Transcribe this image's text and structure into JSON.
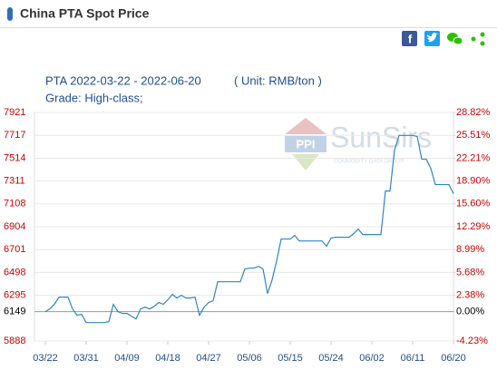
{
  "header": {
    "title": "China PTA Spot Price"
  },
  "chart_data": {
    "type": "line",
    "title": "PTA 2022-03-22 - 2022-06-20",
    "unit": "( Unit: RMB/ton )",
    "subtitle": "Grade: High-class;",
    "watermark": {
      "logo": "PPI",
      "brand": "SunSirs",
      "tagline": "COMMODITY DATA GROUP"
    },
    "categories": [
      "03/22",
      null,
      null,
      null,
      null,
      null,
      null,
      null,
      null,
      "03/31",
      null,
      null,
      null,
      null,
      null,
      null,
      null,
      null,
      "04/09",
      null,
      null,
      null,
      null,
      null,
      null,
      null,
      null,
      "04/18",
      null,
      null,
      null,
      null,
      null,
      null,
      null,
      null,
      "04/27",
      null,
      null,
      null,
      null,
      null,
      null,
      null,
      null,
      "05/06",
      null,
      null,
      null,
      null,
      null,
      null,
      null,
      null,
      "05/15",
      null,
      null,
      null,
      null,
      null,
      null,
      null,
      null,
      "05/24",
      null,
      null,
      null,
      null,
      null,
      null,
      null,
      null,
      "06/02",
      null,
      null,
      null,
      null,
      null,
      null,
      null,
      null,
      "06/11",
      null,
      null,
      null,
      null,
      null,
      null,
      null,
      null,
      "06/20"
    ],
    "values": [
      6149,
      6173,
      6214,
      6278,
      6278,
      6278,
      6173,
      6117,
      6125,
      6052,
      6052,
      6052,
      6052,
      6052,
      6060,
      6214,
      6149,
      6133,
      6133,
      6109,
      6084,
      6173,
      6189,
      6173,
      6197,
      6230,
      6214,
      6254,
      6302,
      6270,
      6294,
      6270,
      6270,
      6278,
      6117,
      6189,
      6230,
      6246,
      6415,
      6415,
      6415,
      6415,
      6415,
      6415,
      6528,
      6536,
      6536,
      6552,
      6528,
      6310,
      6431,
      6601,
      6795,
      6795,
      6795,
      6827,
      6778,
      6778,
      6778,
      6778,
      6778,
      6778,
      6730,
      6803,
      6811,
      6811,
      6811,
      6811,
      6843,
      6883,
      6835,
      6835,
      6835,
      6835,
      6835,
      7222,
      7222,
      7585,
      7717,
      7717,
      7717,
      7717,
      7707,
      7505,
      7505,
      7424,
      7279,
      7279,
      7279,
      7279,
      7198
    ],
    "color": "#2e86c1",
    "ylim": [
      5888,
      7921
    ],
    "yticks": [
      5888,
      6149,
      6295,
      6498,
      6701,
      6904,
      7108,
      7311,
      7514,
      7717,
      7921
    ],
    "y2lim": [
      -4.23,
      28.82
    ],
    "y2ticks": [
      {
        "value": -4.23,
        "label": "-4.23%"
      },
      {
        "value": 0,
        "label": "0.00%"
      },
      {
        "value": 2.38,
        "label": "2.38%"
      },
      {
        "value": 5.68,
        "label": "5.68%"
      },
      {
        "value": 8.99,
        "label": "8.99%"
      },
      {
        "value": 12.29,
        "label": "12.29%"
      },
      {
        "value": 15.6,
        "label": "15.60%"
      },
      {
        "value": 18.9,
        "label": "18.90%"
      },
      {
        "value": 22.21,
        "label": "22.21%"
      },
      {
        "value": 25.51,
        "label": "25.51%"
      },
      {
        "value": 28.82,
        "label": "28.82%"
      }
    ],
    "tick_color": "#cc0000",
    "base_color": "#000000",
    "grid": true
  }
}
